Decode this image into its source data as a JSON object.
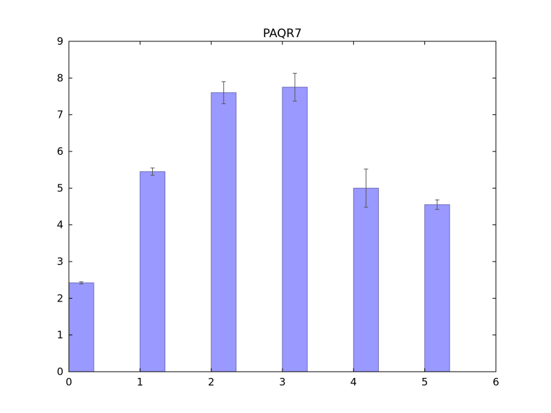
{
  "chart_data": {
    "type": "bar",
    "title": "PAQR7",
    "xlabel": "",
    "ylabel": "",
    "xlim": [
      0,
      6
    ],
    "ylim": [
      0,
      9
    ],
    "x_ticks": [
      "0",
      "1",
      "2",
      "3",
      "4",
      "5",
      "6"
    ],
    "y_ticks": [
      "0",
      "1",
      "2",
      "3",
      "4",
      "5",
      "6",
      "7",
      "8",
      "9"
    ],
    "bar_width": 0.35,
    "x": [
      0,
      1,
      2,
      3,
      4,
      5
    ],
    "values": [
      2.42,
      5.45,
      7.6,
      7.75,
      5.0,
      4.55
    ],
    "errors": [
      0.03,
      0.1,
      0.3,
      0.38,
      0.52,
      0.13
    ],
    "bar_color": "#9999ff",
    "bar_edge_color": "#6f6fba",
    "error_color": "#555555",
    "grid": false,
    "legend": "none"
  }
}
